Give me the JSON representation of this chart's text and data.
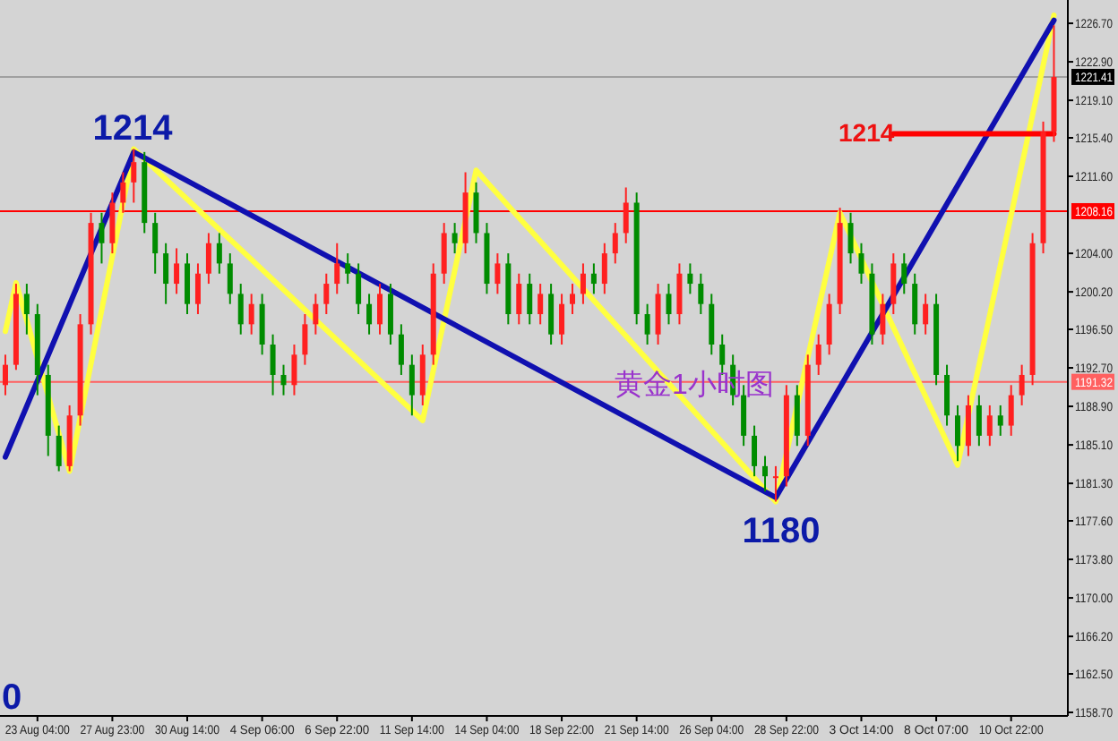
{
  "chart_data": {
    "type": "candlestick",
    "categories": [
      null,
      null,
      null,
      "23 Aug 04:00",
      null,
      null,
      null,
      null,
      null,
      null,
      "27 Aug 23:00",
      null,
      null,
      null,
      null,
      null,
      null,
      "30 Aug 14:00",
      null,
      null,
      null,
      null,
      null,
      null,
      "4 Sep 06:00",
      null,
      null,
      null,
      null,
      null,
      null,
      "6 Sep 22:00",
      null,
      null,
      null,
      null,
      null,
      null,
      "11 Sep 14:00",
      null,
      null,
      null,
      null,
      null,
      null,
      "14 Sep 04:00",
      null,
      null,
      null,
      null,
      null,
      null,
      "18 Sep 22:00",
      null,
      null,
      null,
      null,
      null,
      null,
      "21 Sep 14:00",
      null,
      null,
      null,
      null,
      null,
      null,
      "26 Sep 04:00",
      null,
      null,
      null,
      null,
      null,
      null,
      "28 Sep 22:00",
      null,
      null,
      null,
      null,
      null,
      null,
      "3 Oct 14:00",
      null,
      null,
      null,
      null,
      null,
      null,
      "8 Oct 07:00",
      null,
      null,
      null,
      null,
      null,
      null,
      "10 Oct 22:00",
      null,
      null,
      null,
      null
    ],
    "ohlc": [
      [
        1191,
        1194,
        1190,
        1193
      ],
      [
        1193,
        1201,
        1192.5,
        1200
      ],
      [
        1200,
        1201,
        1196,
        1198
      ],
      [
        1198,
        1199,
        1190,
        1192
      ],
      [
        1192,
        1193,
        1184,
        1186
      ],
      [
        1186,
        1187,
        1182.5,
        1183
      ],
      [
        1183,
        1189,
        1182.5,
        1188
      ],
      [
        1188,
        1198,
        1187,
        1197
      ],
      [
        1197,
        1208,
        1196,
        1207
      ],
      [
        1207,
        1208,
        1203,
        1205
      ],
      [
        1205,
        1210,
        1204,
        1209
      ],
      [
        1209,
        1212,
        1208,
        1211
      ],
      [
        1211,
        1214.3,
        1209,
        1213
      ],
      [
        1213,
        1214,
        1206,
        1207
      ],
      [
        1207,
        1208,
        1202,
        1204
      ],
      [
        1204,
        1205,
        1199,
        1201
      ],
      [
        1201,
        1204.5,
        1200,
        1203
      ],
      [
        1203,
        1204,
        1198,
        1199
      ],
      [
        1199,
        1203,
        1198,
        1202
      ],
      [
        1202,
        1206,
        1201,
        1205
      ],
      [
        1205,
        1206,
        1202,
        1203
      ],
      [
        1203,
        1204,
        1199,
        1200
      ],
      [
        1200,
        1201,
        1196,
        1197
      ],
      [
        1197,
        1200,
        1196,
        1199
      ],
      [
        1199,
        1200,
        1194,
        1195
      ],
      [
        1195,
        1196,
        1190,
        1192
      ],
      [
        1192,
        1193,
        1190,
        1191
      ],
      [
        1191,
        1195,
        1190,
        1194
      ],
      [
        1194,
        1198,
        1193,
        1197
      ],
      [
        1197,
        1200,
        1196,
        1199
      ],
      [
        1199,
        1202,
        1198,
        1201
      ],
      [
        1201,
        1205,
        1200,
        1203
      ],
      [
        1203,
        1204,
        1201,
        1202
      ],
      [
        1202,
        1203,
        1198,
        1199
      ],
      [
        1199,
        1200,
        1196,
        1197
      ],
      [
        1197,
        1201,
        1196,
        1200
      ],
      [
        1200,
        1201,
        1195,
        1196
      ],
      [
        1196,
        1197,
        1192,
        1193
      ],
      [
        1193,
        1194,
        1188,
        1190
      ],
      [
        1190,
        1195,
        1189,
        1194
      ],
      [
        1194,
        1203,
        1193,
        1202
      ],
      [
        1202,
        1207,
        1201,
        1206
      ],
      [
        1206,
        1207,
        1204,
        1205
      ],
      [
        1205,
        1212,
        1204,
        1210
      ],
      [
        1210,
        1211,
        1205,
        1206
      ],
      [
        1206,
        1207,
        1200,
        1201
      ],
      [
        1201,
        1204,
        1200,
        1203
      ],
      [
        1203,
        1204,
        1197,
        1198
      ],
      [
        1198,
        1202,
        1197,
        1201
      ],
      [
        1201,
        1202,
        1197,
        1198
      ],
      [
        1198,
        1201,
        1197,
        1200
      ],
      [
        1200,
        1201,
        1195,
        1196
      ],
      [
        1196,
        1200,
        1195,
        1199
      ],
      [
        1199,
        1201,
        1198,
        1200
      ],
      [
        1200,
        1203,
        1199,
        1202
      ],
      [
        1202,
        1203,
        1200,
        1201
      ],
      [
        1201,
        1205,
        1200,
        1204
      ],
      [
        1204,
        1207,
        1203,
        1206
      ],
      [
        1206,
        1210.5,
        1205,
        1209
      ],
      [
        1209,
        1210,
        1197,
        1198
      ],
      [
        1198,
        1199,
        1195,
        1196
      ],
      [
        1196,
        1201,
        1195,
        1200
      ],
      [
        1200,
        1201,
        1197,
        1198
      ],
      [
        1198,
        1203,
        1197,
        1202
      ],
      [
        1202,
        1203,
        1200,
        1201
      ],
      [
        1201,
        1202,
        1198,
        1199
      ],
      [
        1199,
        1200,
        1194,
        1195
      ],
      [
        1195,
        1196,
        1192,
        1193
      ],
      [
        1193,
        1194,
        1189,
        1190
      ],
      [
        1190,
        1191,
        1185,
        1186
      ],
      [
        1186,
        1187,
        1182,
        1183
      ],
      [
        1183,
        1184,
        1180.5,
        1182
      ],
      [
        1182,
        1183,
        1179.5,
        1182
      ],
      [
        1182,
        1191,
        1181,
        1190
      ],
      [
        1190,
        1191,
        1185,
        1186
      ],
      [
        1186,
        1194,
        1185,
        1193
      ],
      [
        1193,
        1196,
        1192,
        1195
      ],
      [
        1195,
        1200,
        1194,
        1199
      ],
      [
        1199,
        1208.5,
        1198,
        1207
      ],
      [
        1207,
        1208,
        1203,
        1204
      ],
      [
        1204,
        1205,
        1201,
        1202
      ],
      [
        1202,
        1203,
        1195,
        1196
      ],
      [
        1196,
        1200,
        1195,
        1199
      ],
      [
        1199,
        1204,
        1198,
        1203
      ],
      [
        1203,
        1204,
        1200,
        1201
      ],
      [
        1201,
        1202,
        1196,
        1197
      ],
      [
        1197,
        1200,
        1196,
        1199
      ],
      [
        1199,
        1200,
        1191,
        1192
      ],
      [
        1192,
        1193,
        1187,
        1188
      ],
      [
        1188,
        1189,
        1183.5,
        1185
      ],
      [
        1185,
        1190,
        1184,
        1189
      ],
      [
        1189,
        1190,
        1185,
        1186
      ],
      [
        1186,
        1189,
        1185,
        1188
      ],
      [
        1188,
        1189,
        1186,
        1187
      ],
      [
        1187,
        1191,
        1186,
        1190
      ],
      [
        1190,
        1193,
        1189,
        1192
      ],
      [
        1192,
        1206,
        1191,
        1205
      ],
      [
        1205,
        1217,
        1204,
        1216
      ],
      [
        1216,
        1226.5,
        1215,
        1221.4
      ]
    ],
    "series": [
      {
        "type": "line",
        "color": "#ffff40",
        "values": [
          1196.3,
          1201.1,
          null,
          null,
          null,
          null,
          1182.5,
          null,
          null,
          null,
          null,
          null,
          1214.3,
          null,
          null,
          null,
          null,
          null,
          null,
          null,
          null,
          null,
          null,
          null,
          null,
          null,
          null,
          null,
          null,
          null,
          null,
          null,
          null,
          null,
          null,
          null,
          null,
          null,
          null,
          1187.5,
          null,
          null,
          null,
          null,
          1212.2,
          null,
          null,
          null,
          null,
          null,
          null,
          null,
          null,
          null,
          null,
          null,
          null,
          null,
          null,
          null,
          null,
          null,
          null,
          null,
          null,
          null,
          null,
          null,
          null,
          null,
          null,
          null,
          1179.5,
          null,
          null,
          null,
          null,
          null,
          1208,
          null,
          null,
          null,
          null,
          null,
          null,
          null,
          null,
          null,
          null,
          1183.1,
          null,
          null,
          null,
          null,
          null,
          null,
          null,
          null,
          1227.5
        ]
      },
      {
        "type": "line",
        "color": "#1010b0",
        "values": [
          1183.9,
          null,
          null,
          null,
          null,
          null,
          null,
          null,
          null,
          null,
          null,
          null,
          1214,
          null,
          null,
          null,
          null,
          null,
          null,
          null,
          null,
          null,
          null,
          null,
          null,
          null,
          null,
          null,
          null,
          null,
          null,
          null,
          null,
          null,
          null,
          null,
          null,
          null,
          null,
          null,
          null,
          null,
          null,
          null,
          null,
          null,
          null,
          null,
          null,
          null,
          null,
          null,
          null,
          null,
          null,
          null,
          null,
          null,
          null,
          null,
          null,
          null,
          null,
          null,
          null,
          null,
          null,
          null,
          null,
          null,
          null,
          null,
          1179.9,
          null,
          null,
          null,
          null,
          null,
          null,
          null,
          null,
          null,
          null,
          null,
          null,
          null,
          null,
          null,
          null,
          null,
          null,
          null,
          null,
          null,
          null,
          null,
          null,
          null,
          1227
        ]
      },
      {
        "type": "line",
        "color": "#ff0000",
        "values": [
          null,
          null,
          null,
          null,
          null,
          null,
          null,
          null,
          null,
          null,
          null,
          null,
          null,
          null,
          null,
          null,
          null,
          null,
          null,
          null,
          null,
          null,
          null,
          null,
          null,
          null,
          null,
          null,
          null,
          null,
          null,
          null,
          null,
          null,
          null,
          null,
          null,
          null,
          null,
          null,
          null,
          null,
          null,
          null,
          null,
          null,
          null,
          null,
          null,
          null,
          null,
          null,
          null,
          null,
          null,
          null,
          null,
          null,
          null,
          null,
          null,
          null,
          null,
          null,
          null,
          null,
          null,
          null,
          null,
          null,
          null,
          null,
          null,
          null,
          null,
          null,
          null,
          null,
          null,
          null,
          null,
          null,
          null,
          1215.8,
          null,
          null,
          null,
          null,
          null,
          null,
          null,
          null,
          null,
          null,
          null,
          null,
          null,
          null,
          1215.8
        ]
      }
    ],
    "ylim": [
      1158.35,
      1229.0
    ],
    "yticks": [
      {
        "value": 1226.7,
        "label": "1226.70"
      },
      {
        "value": 1222.9,
        "label": "1222.90"
      },
      {
        "value": 1219.1,
        "label": "1219.10"
      },
      {
        "value": 1215.4,
        "label": "1215.40"
      },
      {
        "value": 1211.6,
        "label": "1211.60"
      },
      {
        "value": 1204.0,
        "label": "1204.00"
      },
      {
        "value": 1200.2,
        "label": "1200.20"
      },
      {
        "value": 1196.5,
        "label": "1196.50"
      },
      {
        "value": 1192.7,
        "label": "1192.70"
      },
      {
        "value": 1188.9,
        "label": "1188.90"
      },
      {
        "value": 1185.1,
        "label": "1185.10"
      },
      {
        "value": 1181.3,
        "label": "1181.30"
      },
      {
        "value": 1177.6,
        "label": "1177.60"
      },
      {
        "value": 1173.8,
        "label": "1173.80"
      },
      {
        "value": 1170.0,
        "label": "1170.00"
      },
      {
        "value": 1166.2,
        "label": "1166.20"
      },
      {
        "value": 1162.5,
        "label": "1162.50"
      },
      {
        "value": 1158.7,
        "label": "1158.70"
      }
    ],
    "ref_lines": [
      {
        "axis": "y",
        "value": 1221.41,
        "label": "1221.41",
        "color": "#a0a0a0"
      },
      {
        "axis": "y",
        "value": 1208.16,
        "label": "1208.16",
        "color": "#ff0000"
      },
      {
        "axis": "y",
        "value": 1191.32,
        "label": "1191.32",
        "color": "#ff6060"
      }
    ],
    "annotations": [
      "1214",
      "1180",
      "1214",
      "黄金1小时图",
      "0"
    ]
  }
}
